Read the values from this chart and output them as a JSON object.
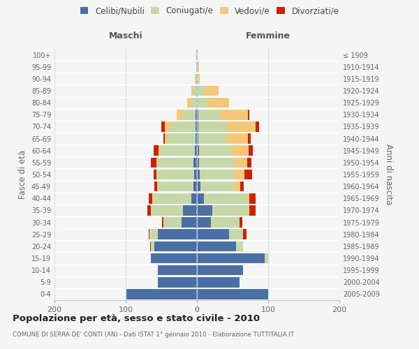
{
  "age_groups": [
    "0-4",
    "5-9",
    "10-14",
    "15-19",
    "20-24",
    "25-29",
    "30-34",
    "35-39",
    "40-44",
    "45-49",
    "50-54",
    "55-59",
    "60-64",
    "65-69",
    "70-74",
    "75-79",
    "80-84",
    "85-89",
    "90-94",
    "95-99",
    "100+"
  ],
  "birth_years": [
    "2005-2009",
    "2000-2004",
    "1995-1999",
    "1990-1994",
    "1985-1989",
    "1980-1984",
    "1975-1979",
    "1970-1974",
    "1965-1969",
    "1960-1964",
    "1955-1959",
    "1950-1954",
    "1945-1949",
    "1940-1944",
    "1935-1939",
    "1930-1934",
    "1925-1929",
    "1920-1924",
    "1915-1919",
    "1910-1914",
    "≤ 1909"
  ],
  "males": {
    "celibe": [
      100,
      55,
      55,
      65,
      60,
      55,
      22,
      20,
      8,
      5,
      4,
      5,
      3,
      2,
      2,
      2,
      0,
      0,
      0,
      0,
      0
    ],
    "coniugato": [
      0,
      0,
      0,
      0,
      5,
      12,
      25,
      45,
      55,
      50,
      52,
      50,
      48,
      38,
      35,
      18,
      8,
      5,
      2,
      1,
      1
    ],
    "vedovo": [
      0,
      0,
      0,
      0,
      0,
      0,
      0,
      0,
      0,
      1,
      1,
      2,
      3,
      5,
      8,
      8,
      6,
      3,
      1,
      0,
      0
    ],
    "divorziato": [
      0,
      0,
      0,
      0,
      1,
      1,
      2,
      5,
      5,
      4,
      4,
      8,
      7,
      2,
      5,
      0,
      0,
      0,
      0,
      0,
      0
    ]
  },
  "females": {
    "nubile": [
      100,
      60,
      65,
      95,
      55,
      45,
      20,
      22,
      10,
      5,
      4,
      3,
      3,
      2,
      2,
      2,
      0,
      0,
      0,
      0,
      0
    ],
    "coniugata": [
      0,
      0,
      0,
      5,
      10,
      20,
      40,
      50,
      60,
      48,
      48,
      50,
      45,
      40,
      40,
      30,
      15,
      10,
      2,
      2,
      1
    ],
    "vedova": [
      0,
      0,
      0,
      0,
      0,
      0,
      0,
      2,
      4,
      8,
      15,
      18,
      25,
      30,
      40,
      40,
      30,
      20,
      2,
      1,
      0
    ],
    "divorziata": [
      0,
      0,
      0,
      0,
      0,
      5,
      4,
      8,
      8,
      5,
      10,
      5,
      5,
      3,
      5,
      2,
      0,
      0,
      0,
      0,
      0
    ]
  },
  "colors": {
    "celibe": "#4a6fa5",
    "coniugato": "#c5d9a8",
    "vedovo": "#f5c878",
    "divorziato": "#cc2200"
  },
  "title": "Popolazione per età, sesso e stato civile - 2010",
  "subtitle": "COMUNE DI SERRA DE' CONTI (AN) - Dati ISTAT 1° gennaio 2010 - Elaborazione TUTTITALIA.IT",
  "ylabel_left": "Fasce di età",
  "ylabel_right": "Anni di nascita",
  "xlabel_maschi": "Maschi",
  "xlabel_femmine": "Femmine",
  "xlim": 200,
  "legend_labels": [
    "Celibi/Nubili",
    "Coniugati/e",
    "Vedovi/e",
    "Divorziati/e"
  ],
  "background_color": "#f5f5f5"
}
